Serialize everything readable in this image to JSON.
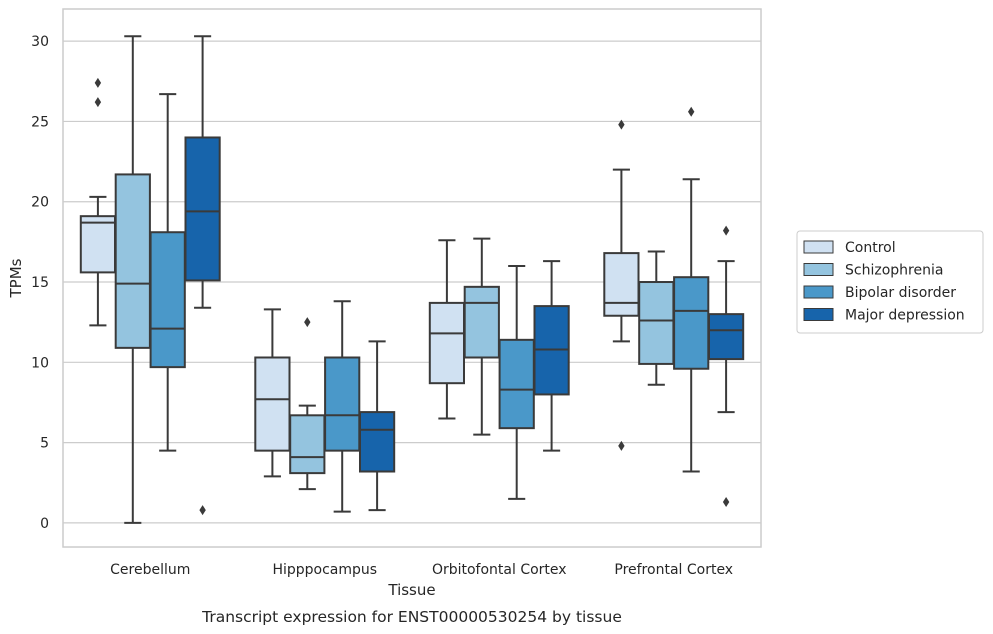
{
  "chart_data": {
    "type": "box",
    "title": "",
    "caption": "Transcript expression for ENST00000530254 by tissue",
    "xlabel": "Tissue",
    "ylabel": "TPMs",
    "ylim": [
      -1.5,
      32
    ],
    "yticks": [
      0,
      5,
      10,
      15,
      20,
      25,
      30
    ],
    "grid": true,
    "legend_position": "right",
    "categories": [
      "Cerebellum",
      "Hipppocampus",
      "Orbitofontal Cortex",
      "Prefrontal Cortex"
    ],
    "series": [
      {
        "name": "Control",
        "color": "#d0e1f2",
        "boxes": [
          {
            "whislo": 12.3,
            "q1": 15.6,
            "med": 18.7,
            "q3": 19.1,
            "whishi": 20.3,
            "fliers": [
              26.2,
              27.4
            ]
          },
          {
            "whislo": 2.9,
            "q1": 4.5,
            "med": 7.7,
            "q3": 10.3,
            "whishi": 13.3,
            "fliers": []
          },
          {
            "whislo": 6.5,
            "q1": 8.7,
            "med": 11.8,
            "q3": 13.7,
            "whishi": 17.6,
            "fliers": []
          },
          {
            "whislo": 11.3,
            "q1": 12.9,
            "med": 13.7,
            "q3": 16.8,
            "whishi": 22.0,
            "fliers": [
              4.8,
              24.8
            ]
          }
        ]
      },
      {
        "name": "Schizophrenia",
        "color": "#94c4df",
        "boxes": [
          {
            "whislo": 0.0,
            "q1": 10.9,
            "med": 14.9,
            "q3": 21.7,
            "whishi": 30.3,
            "fliers": []
          },
          {
            "whislo": 2.1,
            "q1": 3.1,
            "med": 4.1,
            "q3": 6.7,
            "whishi": 7.3,
            "fliers": [
              12.5
            ]
          },
          {
            "whislo": 5.5,
            "q1": 10.3,
            "med": 13.7,
            "q3": 14.7,
            "whishi": 17.7,
            "fliers": []
          },
          {
            "whislo": 8.6,
            "q1": 9.9,
            "med": 12.6,
            "q3": 15.0,
            "whishi": 16.9,
            "fliers": []
          }
        ]
      },
      {
        "name": "Bipolar disorder",
        "color": "#4a98c9",
        "boxes": [
          {
            "whislo": 4.5,
            "q1": 9.7,
            "med": 12.1,
            "q3": 18.1,
            "whishi": 26.7,
            "fliers": []
          },
          {
            "whislo": 0.7,
            "q1": 4.5,
            "med": 6.7,
            "q3": 10.3,
            "whishi": 13.8,
            "fliers": []
          },
          {
            "whislo": 1.5,
            "q1": 5.9,
            "med": 8.3,
            "q3": 11.4,
            "whishi": 16.0,
            "fliers": []
          },
          {
            "whislo": 3.2,
            "q1": 9.6,
            "med": 13.2,
            "q3": 15.3,
            "whishi": 21.4,
            "fliers": [
              25.6
            ]
          }
        ]
      },
      {
        "name": "Major depression",
        "color": "#1764ab",
        "boxes": [
          {
            "whislo": 13.4,
            "q1": 15.1,
            "med": 19.4,
            "q3": 24.0,
            "whishi": 30.3,
            "fliers": [
              0.8
            ]
          },
          {
            "whislo": 0.8,
            "q1": 3.2,
            "med": 5.8,
            "q3": 6.9,
            "whishi": 11.3,
            "fliers": []
          },
          {
            "whislo": 4.5,
            "q1": 8.0,
            "med": 10.8,
            "q3": 13.5,
            "whishi": 16.3,
            "fliers": []
          },
          {
            "whislo": 6.9,
            "q1": 10.2,
            "med": 12.0,
            "q3": 13.0,
            "whishi": 16.3,
            "fliers": [
              1.3,
              18.2
            ]
          }
        ]
      }
    ]
  }
}
